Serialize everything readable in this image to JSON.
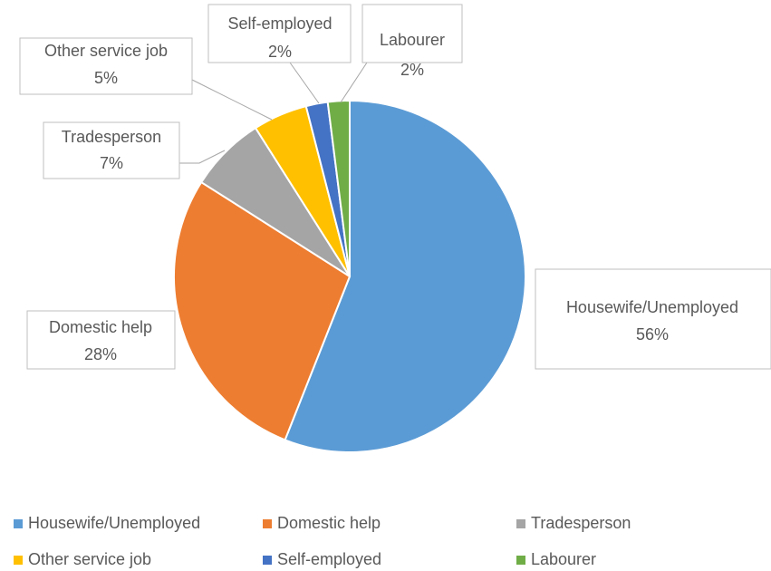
{
  "chart_data": {
    "type": "pie",
    "categories": [
      "Housewife/Unemployed",
      "Domestic help",
      "Tradesperson",
      "Other service job",
      "Self-employed",
      "Labourer"
    ],
    "values": [
      56,
      28,
      7,
      5,
      2,
      2
    ],
    "value_labels": [
      "56%",
      "28%",
      "7%",
      "5%",
      "2%",
      "2%"
    ],
    "colors": [
      "#5b9bd5",
      "#ed7d31",
      "#a5a5a5",
      "#ffc000",
      "#4472c4",
      "#70ad47"
    ],
    "legend": "bottom"
  }
}
